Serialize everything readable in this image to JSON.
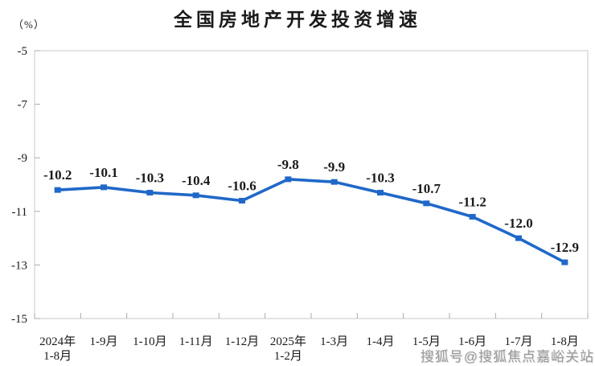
{
  "header": {
    "title": "全国房地产开发投资增速",
    "unit_label": "（%）"
  },
  "watermark": {
    "text": "搜狐号@搜狐焦点嘉峪关站",
    "color": "#9b9b9b"
  },
  "colors": {
    "line": "#2068C8",
    "frame": "#c9c9c9",
    "tick": "#ababab",
    "text": "#1a1a1a"
  },
  "chart_data": {
    "type": "line",
    "title": "全国房地产开发投资增速",
    "ylabel": "（%）",
    "xlabel": "",
    "categories": [
      "2024年\n1-8月",
      "1-9月",
      "1-10月",
      "1-11月",
      "1-12月",
      "2025年\n1-2月",
      "1-3月",
      "1-4月",
      "1-5月",
      "1-6月",
      "1-7月",
      "1-8月"
    ],
    "series": [
      {
        "name": "全国房地产开发投资增速",
        "values": [
          -10.2,
          -10.1,
          -10.3,
          -10.4,
          -10.6,
          -9.8,
          -9.9,
          -10.3,
          -10.7,
          -11.2,
          -12.0,
          -12.9
        ]
      }
    ],
    "data_labels": [
      "-10.2",
      "-10.1",
      "-10.3",
      "-10.4",
      "-10.6",
      "-9.8",
      "-9.9",
      "-10.3",
      "-10.7",
      "-11.2",
      "-12.0",
      "-12.9"
    ],
    "ylim": [
      -15,
      -5
    ],
    "yticks": [
      -5,
      -7,
      -9,
      -11,
      -13,
      -15
    ],
    "grid": false,
    "legend": "none",
    "marker": "square",
    "line_color": "#2068C8"
  }
}
